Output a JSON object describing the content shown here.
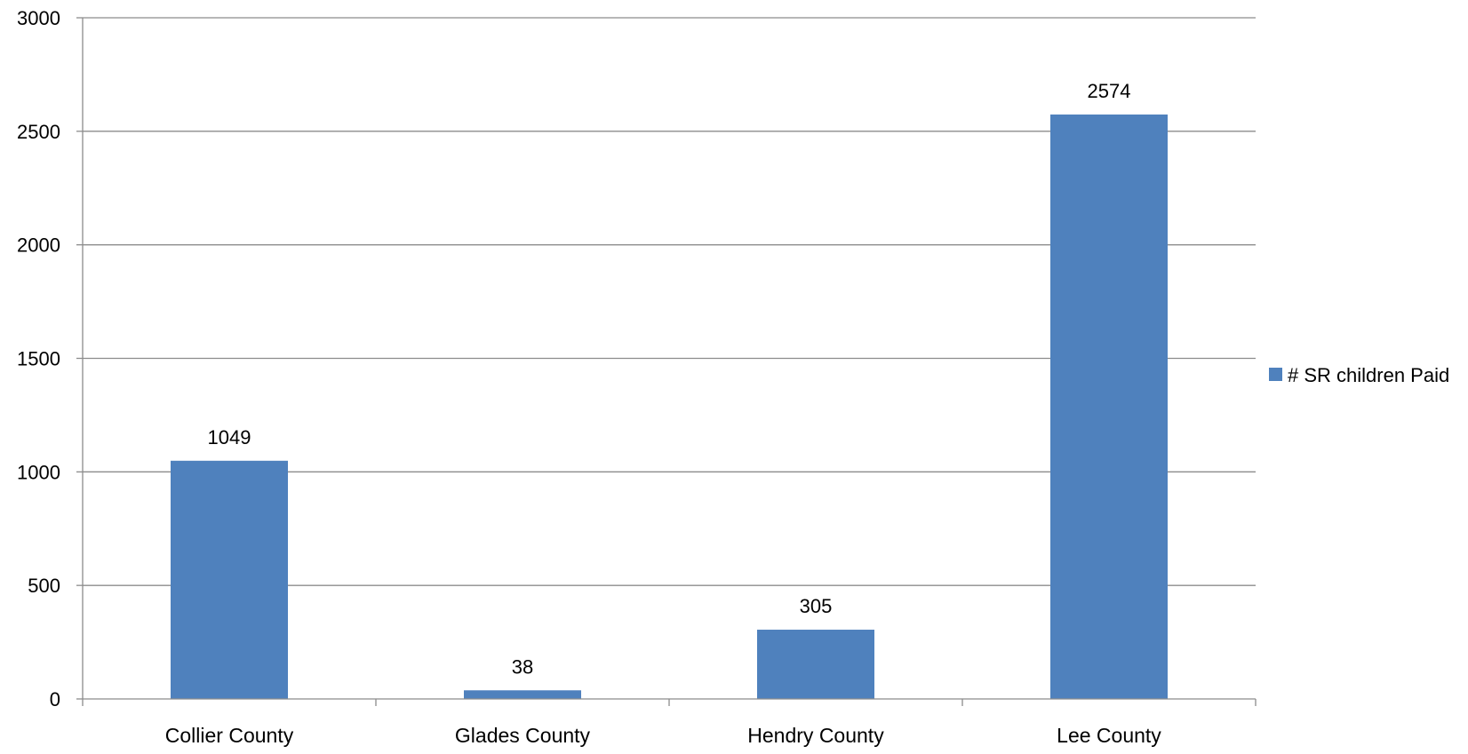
{
  "chart_data": {
    "type": "bar",
    "categories": [
      "Collier County",
      "Glades County",
      "Hendry County",
      "Lee County"
    ],
    "series": [
      {
        "name": "# SR children Paid",
        "values": [
          1049,
          38,
          305,
          2574
        ],
        "color": "#4F81BD"
      }
    ],
    "data_labels": [
      "1049",
      "38",
      "305",
      "2574"
    ],
    "yticks": [
      0,
      500,
      1000,
      1500,
      2000,
      2500,
      3000
    ],
    "ytick_labels": [
      "0",
      "500",
      "1000",
      "1500",
      "2000",
      "2500",
      "3000"
    ],
    "ylim": [
      0,
      3000
    ],
    "title": "",
    "xlabel": "",
    "ylabel": "",
    "grid": true,
    "legend_position": "right"
  },
  "legend": {
    "label": "# SR children Paid"
  },
  "colors": {
    "bar": "#4F81BD",
    "gridline": "#8C8C8C",
    "axis": "#8C8C8C"
  }
}
